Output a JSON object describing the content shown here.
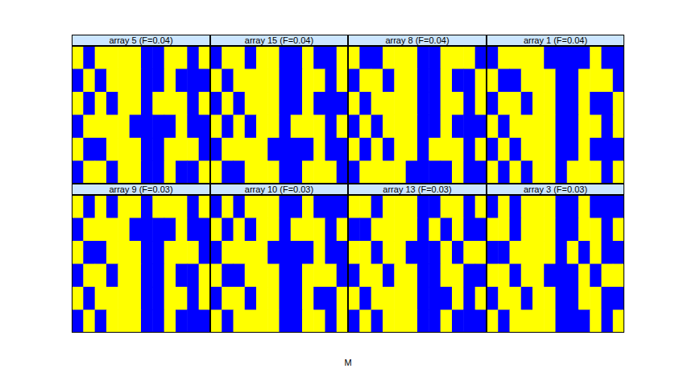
{
  "chart_data": {
    "type": "heatmap",
    "xlabel": "M",
    "colors": [
      "#0000ff",
      "#ffff00"
    ],
    "tick_labels": false,
    "panels": [
      {
        "title": "array 5 (F=0.04)",
        "cells": [
          [
            0.2,
            -0.1,
            0.1,
            0.2,
            0.3,
            0.3,
            -0.3,
            -0.2,
            0.2,
            0.1,
            -0.2,
            0.1
          ],
          [
            -0.1,
            0.2,
            -0.1,
            0.2,
            0.3,
            0.2,
            -0.2,
            -0.3,
            0.1,
            -0.1,
            -0.1,
            -0.2
          ],
          [
            0.1,
            -0.2,
            0.2,
            -0.1,
            0.2,
            0.3,
            -0.2,
            0.1,
            0.2,
            0.2,
            -0.2,
            0.1
          ],
          [
            -0.2,
            0.1,
            0.1,
            0.2,
            0.2,
            -0.1,
            -0.3,
            -0.2,
            -0.1,
            0.1,
            -0.2,
            -0.1
          ],
          [
            0.1,
            -0.1,
            -0.2,
            0.1,
            0.3,
            0.2,
            -0.2,
            -0.2,
            0.2,
            0.1,
            0.1,
            -0.1
          ],
          [
            -0.1,
            0.2,
            0.1,
            -0.1,
            0.2,
            0.3,
            -0.3,
            -0.1,
            0.1,
            -0.1,
            -0.2,
            0.2
          ]
        ]
      },
      {
        "title": "array 15 (F=0.04)",
        "cells": [
          [
            -0.1,
            0.2,
            0.1,
            -0.1,
            0.2,
            0.3,
            -0.3,
            -0.1,
            0.1,
            -0.1,
            -0.2,
            0.2
          ],
          [
            0.2,
            -0.1,
            0.1,
            0.2,
            0.3,
            0.3,
            -0.3,
            -0.2,
            0.2,
            0.1,
            -0.2,
            0.1
          ],
          [
            -0.2,
            0.1,
            -0.1,
            0.2,
            0.3,
            0.2,
            -0.2,
            -0.3,
            0.1,
            -0.1,
            -0.1,
            -0.2
          ],
          [
            0.1,
            -0.2,
            0.2,
            -0.1,
            0.2,
            0.3,
            -0.2,
            0.1,
            0.2,
            0.2,
            -0.2,
            0.1
          ],
          [
            -0.2,
            0.1,
            0.1,
            0.2,
            0.2,
            -0.1,
            -0.3,
            -0.2,
            -0.1,
            0.1,
            -0.2,
            -0.1
          ],
          [
            0.1,
            -0.1,
            -0.2,
            0.1,
            0.3,
            0.2,
            -0.2,
            -0.2,
            0.2,
            0.1,
            0.1,
            -0.1
          ]
        ]
      },
      {
        "title": "array 8 (F=0.04)",
        "cells": [
          [
            0.1,
            -0.1,
            -0.2,
            0.1,
            0.3,
            0.2,
            -0.2,
            -0.2,
            0.2,
            0.1,
            0.1,
            -0.1
          ],
          [
            -0.1,
            0.2,
            0.1,
            -0.1,
            0.2,
            0.3,
            -0.3,
            -0.1,
            0.1,
            -0.1,
            -0.2,
            0.2
          ],
          [
            0.2,
            -0.1,
            0.1,
            0.2,
            0.3,
            0.3,
            -0.3,
            -0.2,
            0.2,
            0.1,
            -0.2,
            0.1
          ],
          [
            -0.1,
            0.2,
            -0.1,
            0.2,
            0.3,
            0.2,
            -0.2,
            -0.3,
            0.1,
            -0.1,
            -0.1,
            -0.2
          ],
          [
            0.1,
            -0.2,
            0.2,
            -0.1,
            0.2,
            0.3,
            -0.2,
            0.1,
            0.2,
            0.2,
            -0.2,
            0.1
          ],
          [
            -0.2,
            0.1,
            0.1,
            0.2,
            0.2,
            -0.1,
            -0.3,
            -0.2,
            -0.1,
            0.1,
            -0.2,
            -0.1
          ]
        ]
      },
      {
        "title": "array 1 (F=0.04)",
        "cells": [
          [
            -0.2,
            0.1,
            0.1,
            0.2,
            0.2,
            -0.1,
            -0.3,
            -0.2,
            -0.1,
            0.1,
            -0.2,
            -0.1
          ],
          [
            0.1,
            -0.1,
            -0.2,
            0.1,
            0.3,
            0.2,
            -0.2,
            -0.2,
            0.2,
            0.1,
            0.1,
            -0.1
          ],
          [
            -0.1,
            0.2,
            0.1,
            -0.1,
            0.2,
            0.3,
            -0.3,
            -0.1,
            0.1,
            -0.1,
            -0.2,
            0.2
          ],
          [
            0.2,
            -0.1,
            0.1,
            0.2,
            0.3,
            0.3,
            -0.3,
            -0.2,
            0.2,
            0.1,
            -0.2,
            0.1
          ],
          [
            -0.1,
            0.2,
            -0.1,
            0.2,
            0.3,
            0.2,
            -0.2,
            -0.3,
            0.1,
            -0.1,
            -0.1,
            -0.2
          ],
          [
            0.1,
            -0.2,
            0.2,
            -0.1,
            0.2,
            0.3,
            -0.2,
            0.1,
            0.2,
            0.2,
            -0.2,
            0.1
          ]
        ]
      },
      {
        "title": "array 9 (F=0.03)",
        "cells": [
          [
            0.1,
            -0.2,
            0.2,
            -0.1,
            0.2,
            0.3,
            -0.2,
            0.1,
            0.2,
            0.2,
            -0.2,
            0.1
          ],
          [
            -0.2,
            0.1,
            0.1,
            0.2,
            0.2,
            -0.1,
            -0.3,
            -0.2,
            -0.1,
            0.1,
            -0.2,
            -0.1
          ],
          [
            0.1,
            -0.1,
            -0.2,
            0.1,
            0.3,
            0.2,
            -0.2,
            -0.2,
            0.2,
            0.1,
            0.1,
            -0.1
          ],
          [
            -0.1,
            0.2,
            0.1,
            -0.1,
            0.2,
            0.3,
            -0.3,
            -0.1,
            0.1,
            -0.1,
            -0.2,
            0.2
          ],
          [
            0.2,
            -0.1,
            0.1,
            0.2,
            0.3,
            0.3,
            -0.3,
            -0.2,
            0.2,
            0.1,
            -0.2,
            0.1
          ],
          [
            -0.1,
            0.2,
            -0.1,
            0.2,
            0.3,
            0.2,
            -0.2,
            -0.3,
            0.1,
            -0.1,
            -0.1,
            -0.2
          ]
        ]
      },
      {
        "title": "array 10 (F=0.03)",
        "cells": [
          [
            -0.1,
            0.2,
            -0.1,
            0.2,
            0.3,
            0.2,
            -0.2,
            -0.3,
            0.1,
            -0.1,
            -0.1,
            -0.2
          ],
          [
            0.1,
            -0.2,
            0.2,
            -0.1,
            0.2,
            0.3,
            -0.2,
            0.1,
            0.2,
            0.2,
            -0.2,
            0.1
          ],
          [
            -0.2,
            0.1,
            0.1,
            0.2,
            0.2,
            -0.1,
            -0.3,
            -0.2,
            -0.1,
            0.1,
            -0.2,
            -0.1
          ],
          [
            0.1,
            -0.1,
            -0.2,
            0.1,
            0.3,
            0.2,
            -0.2,
            -0.2,
            0.2,
            0.1,
            0.1,
            -0.1
          ],
          [
            -0.1,
            0.2,
            0.1,
            -0.1,
            0.2,
            0.3,
            -0.3,
            -0.1,
            0.1,
            -0.1,
            -0.2,
            0.2
          ],
          [
            0.2,
            -0.1,
            0.1,
            0.2,
            0.3,
            0.3,
            -0.3,
            -0.2,
            0.2,
            0.1,
            -0.2,
            0.1
          ]
        ]
      },
      {
        "title": "array 13 (F=0.03)",
        "cells": [
          [
            0.2,
            0.1,
            -0.1,
            0.2,
            0.3,
            0.2,
            -0.2,
            -0.2,
            0.1,
            0.2,
            -0.1,
            0.1
          ],
          [
            -0.1,
            -0.2,
            0.1,
            0.1,
            0.2,
            0.3,
            -0.3,
            0.1,
            -0.1,
            0.1,
            -0.2,
            -0.1
          ],
          [
            0.1,
            0.2,
            -0.2,
            0.2,
            0.3,
            -0.1,
            -0.2,
            -0.3,
            0.2,
            -0.1,
            0.1,
            0.2
          ],
          [
            -0.2,
            0.1,
            0.2,
            -0.1,
            0.2,
            0.2,
            -0.3,
            -0.2,
            0.1,
            0.2,
            -0.2,
            -0.1
          ],
          [
            0.1,
            -0.1,
            0.1,
            0.2,
            0.3,
            0.3,
            -0.2,
            -0.1,
            -0.2,
            0.1,
            -0.1,
            0.1
          ],
          [
            -0.1,
            0.1,
            -0.1,
            0.1,
            0.2,
            0.2,
            -0.3,
            -0.2,
            0.2,
            -0.1,
            -0.2,
            -0.2
          ]
        ]
      },
      {
        "title": "array 3 (F=0.03)",
        "cells": [
          [
            -0.1,
            0.1,
            -0.1,
            0.1,
            0.2,
            0.2,
            -0.3,
            -0.2,
            0.2,
            -0.1,
            -0.2,
            -0.2
          ],
          [
            0.2,
            0.1,
            -0.1,
            0.2,
            0.3,
            0.2,
            -0.2,
            -0.2,
            0.1,
            0.2,
            -0.1,
            0.1
          ],
          [
            -0.1,
            -0.2,
            0.1,
            0.1,
            0.2,
            0.3,
            -0.3,
            0.1,
            -0.1,
            0.1,
            -0.2,
            -0.1
          ],
          [
            0.1,
            0.2,
            -0.2,
            0.2,
            0.3,
            -0.1,
            -0.2,
            -0.3,
            0.2,
            -0.1,
            0.1,
            0.2
          ],
          [
            -0.2,
            0.1,
            0.2,
            -0.1,
            0.2,
            0.2,
            -0.3,
            -0.2,
            0.1,
            0.2,
            -0.2,
            -0.1
          ],
          [
            0.1,
            -0.1,
            0.1,
            0.2,
            0.3,
            0.3,
            -0.2,
            -0.1,
            -0.2,
            0.1,
            -0.1,
            0.1
          ]
        ]
      }
    ]
  }
}
